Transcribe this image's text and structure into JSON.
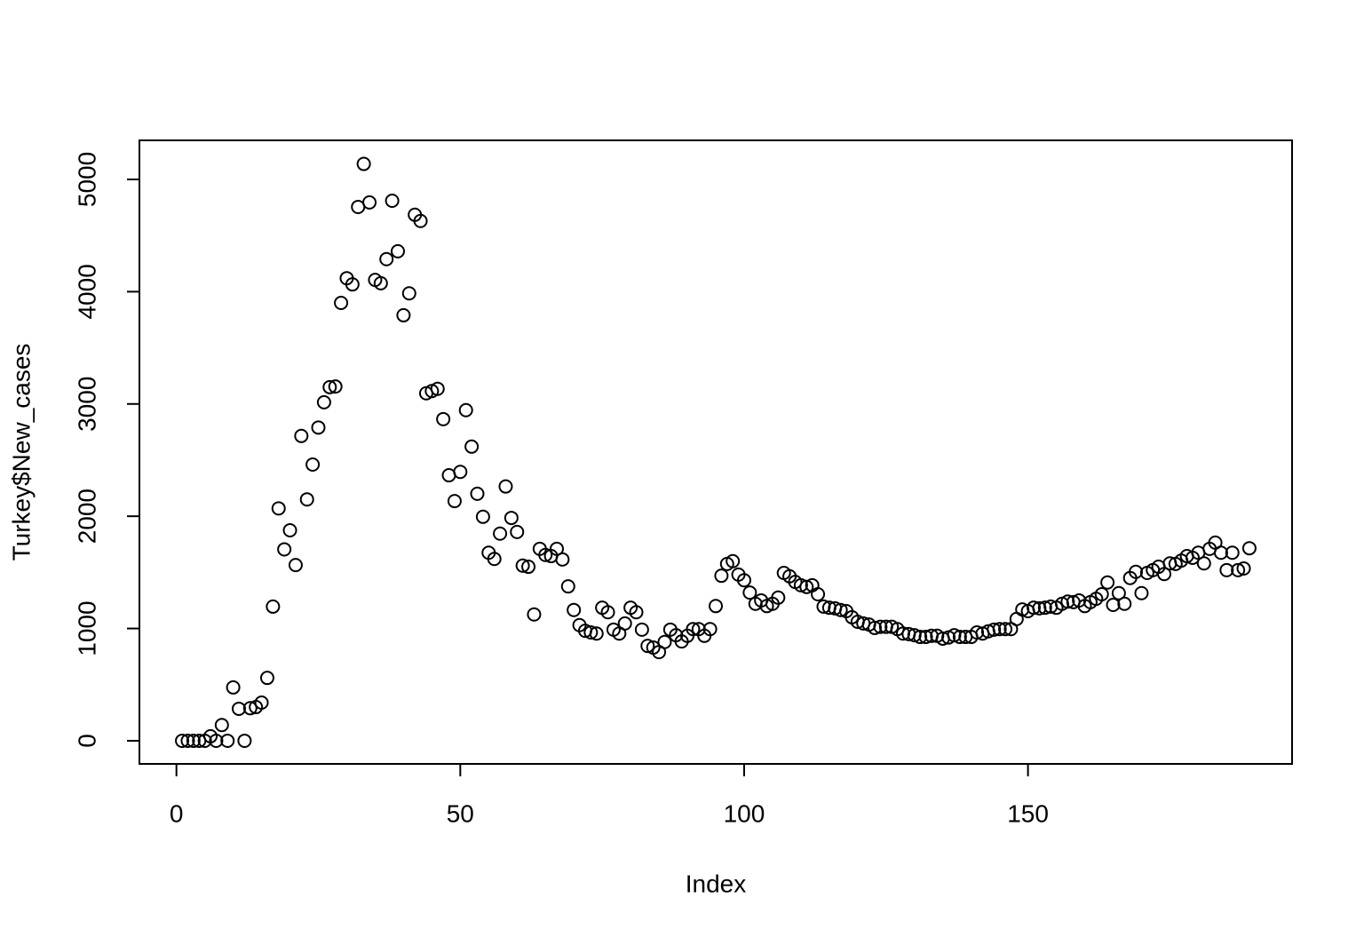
{
  "chart_data": {
    "type": "scatter",
    "x_label": "Index",
    "y_label": "Turkey$New_cases",
    "x": [
      1,
      2,
      3,
      4,
      5,
      6,
      7,
      8,
      9,
      10,
      11,
      12,
      13,
      14,
      15,
      16,
      17,
      18,
      19,
      20,
      21,
      22,
      23,
      24,
      25,
      26,
      27,
      28,
      29,
      30,
      31,
      32,
      33,
      34,
      35,
      36,
      37,
      38,
      39,
      40,
      41,
      42,
      43,
      44,
      45,
      46,
      47,
      48,
      49,
      50,
      51,
      52,
      53,
      54,
      55,
      56,
      57,
      58,
      59,
      60,
      61,
      62,
      63,
      64,
      65,
      66,
      67,
      68,
      69,
      70,
      71,
      72,
      73,
      74,
      75,
      76,
      77,
      78,
      79,
      80,
      81,
      82,
      83,
      84,
      85,
      86,
      87,
      88,
      89,
      90,
      91,
      92,
      93,
      94,
      95,
      96,
      97,
      98,
      99,
      100,
      101,
      102,
      103,
      104,
      105,
      106,
      107,
      108,
      109,
      110,
      111,
      112,
      113,
      114,
      115,
      116,
      117,
      118,
      119,
      120,
      121,
      122,
      123,
      124,
      125,
      126,
      127,
      128,
      129,
      130,
      131,
      132,
      133,
      134,
      135,
      136,
      137,
      138,
      139,
      140,
      141,
      142,
      143,
      144,
      145,
      146,
      147,
      148,
      149,
      150,
      151,
      152,
      153,
      154,
      155,
      156,
      157,
      158,
      159,
      160,
      161,
      162,
      163,
      164,
      165,
      166,
      167,
      168,
      169,
      170,
      171,
      172,
      173,
      174,
      175,
      176,
      177,
      178,
      179,
      180,
      181,
      182,
      183,
      184,
      185,
      186,
      187,
      188,
      189
    ],
    "values": [
      0,
      0,
      0,
      0,
      0,
      40,
      0,
      140,
      0,
      475,
      285,
      0,
      290,
      300,
      340,
      560,
      1195,
      2070,
      1705,
      1875,
      1565,
      2715,
      2150,
      2460,
      2790,
      3015,
      3150,
      3155,
      3900,
      4120,
      4065,
      4755,
      5138,
      4795,
      4105,
      4075,
      4290,
      4810,
      4360,
      3790,
      3985,
      4685,
      4630,
      3095,
      3115,
      3135,
      2865,
      2365,
      2135,
      2395,
      2945,
      2620,
      2200,
      1995,
      1675,
      1620,
      1845,
      2265,
      1985,
      1860,
      1560,
      1550,
      1125,
      1710,
      1655,
      1645,
      1710,
      1615,
      1375,
      1165,
      1030,
      980,
      965,
      955,
      1185,
      1145,
      990,
      955,
      1045,
      1185,
      1145,
      990,
      845,
      830,
      790,
      880,
      990,
      940,
      885,
      935,
      995,
      995,
      935,
      995,
      1200,
      1470,
      1575,
      1600,
      1480,
      1430,
      1320,
      1220,
      1250,
      1200,
      1220,
      1275,
      1495,
      1465,
      1415,
      1385,
      1370,
      1385,
      1305,
      1195,
      1185,
      1180,
      1165,
      1155,
      1100,
      1060,
      1045,
      1035,
      1005,
      1015,
      1015,
      1015,
      995,
      955,
      950,
      940,
      925,
      925,
      935,
      935,
      910,
      920,
      940,
      925,
      925,
      925,
      965,
      955,
      975,
      990,
      995,
      995,
      995,
      1085,
      1170,
      1155,
      1185,
      1180,
      1185,
      1195,
      1185,
      1220,
      1240,
      1235,
      1250,
      1200,
      1235,
      1265,
      1305,
      1410,
      1210,
      1315,
      1220,
      1450,
      1505,
      1315,
      1495,
      1520,
      1550,
      1485,
      1580,
      1575,
      1605,
      1645,
      1630,
      1675,
      1580,
      1710,
      1765,
      1675,
      1520,
      1675,
      1520,
      1535,
      1715
    ],
    "color": "#000000",
    "xlim": [
      -6.52,
      196.52
    ],
    "xticks": [
      0,
      50,
      100,
      150
    ],
    "ylim": [
      -206,
      5348
    ],
    "yticks": [
      0,
      1000,
      2000,
      3000,
      4000,
      5000
    ]
  }
}
